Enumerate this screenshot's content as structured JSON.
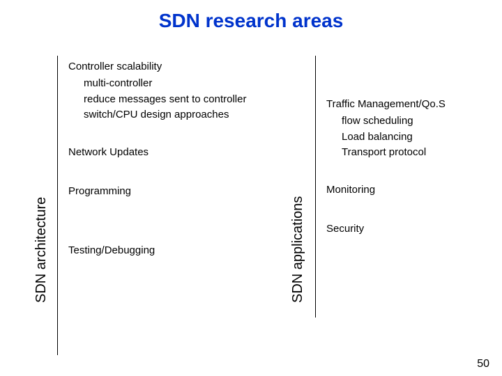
{
  "title": "SDN research areas",
  "leftLabel": "SDN architecture",
  "rightLabel": "SDN applications",
  "leftCol": {
    "controllerScalability": "Controller scalability",
    "multiController": "multi-controller",
    "reduceMessages": "reduce messages sent to controller",
    "switchCpu": "switch/CPU design approaches",
    "networkUpdates": "Network Updates",
    "programming": "Programming",
    "testingDebugging": "Testing/Debugging"
  },
  "rightCol": {
    "trafficMgmt": "Traffic Management/Qo.S",
    "flowScheduling": "flow scheduling",
    "loadBalancing": "Load balancing",
    "transportProtocol": "Transport protocol",
    "monitoring": "Monitoring",
    "security": "Security"
  },
  "pageNumber": "50",
  "colors": {
    "titleColor": "#0033cc",
    "textColor": "#000000",
    "background": "#ffffff",
    "lineColor": "#000000"
  },
  "fonts": {
    "titleSize": 28,
    "labelSize": 20,
    "bodySize": 15
  }
}
